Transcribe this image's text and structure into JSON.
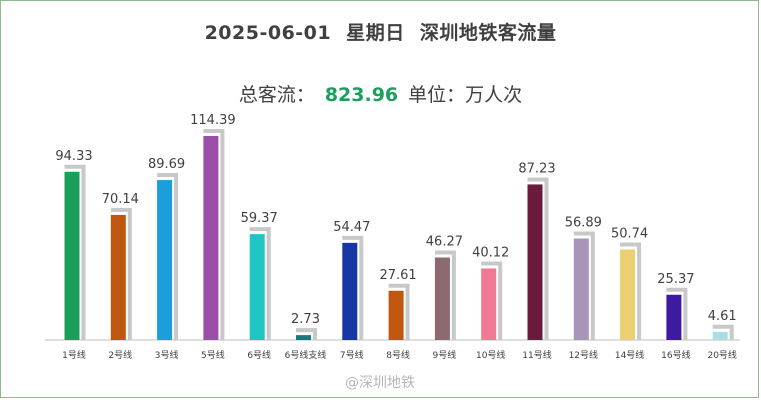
{
  "title_parts": {
    "date": "2025-06-01",
    "weekday": "星期日",
    "name": "深圳地铁客流量"
  },
  "subtitle": {
    "label": "总客流：",
    "total": "823.96",
    "unit": "单位：万人次"
  },
  "watermark": "@深圳地铁",
  "chart_data": {
    "type": "bar",
    "categories": [
      "1号线",
      "2号线",
      "3号线",
      "5号线",
      "6号线",
      "6号线支线",
      "7号线",
      "8号线",
      "9号线",
      "10号线",
      "11号线",
      "12号线",
      "14号线",
      "16号线",
      "20号线"
    ],
    "values": [
      94.33,
      70.14,
      89.69,
      114.39,
      59.37,
      2.73,
      54.47,
      27.61,
      46.27,
      40.12,
      87.23,
      56.89,
      50.74,
      25.37,
      4.61
    ],
    "colors": [
      "#1aa05a",
      "#c0570f",
      "#1a9fdb",
      "#9b4fa9",
      "#1ec7c1",
      "#167a7a",
      "#1737a6",
      "#c0570f",
      "#8c6a6f",
      "#f07a94",
      "#6b1a3c",
      "#a895b8",
      "#ead070",
      "#3f1aa0",
      "#a8dfe3"
    ],
    "ylim": [
      0,
      120
    ],
    "grid": false,
    "legend": "none"
  }
}
